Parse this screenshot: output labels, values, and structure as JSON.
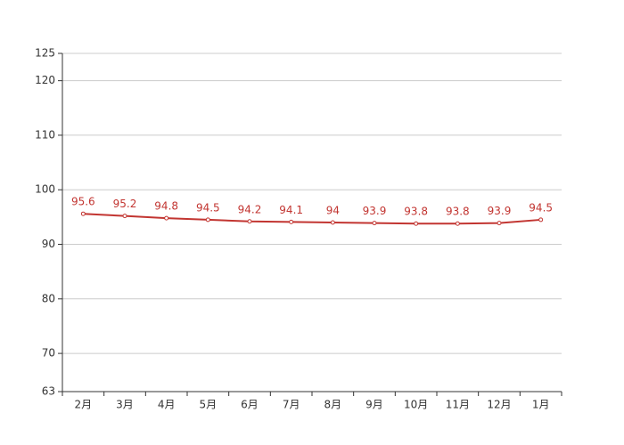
{
  "chart_data": {
    "type": "line",
    "categories": [
      "2月",
      "3月",
      "4月",
      "5月",
      "6月",
      "7月",
      "8月",
      "9月",
      "10月",
      "11月",
      "12月",
      "1月"
    ],
    "values": [
      95.6,
      95.2,
      94.8,
      94.5,
      94.2,
      94.1,
      94,
      93.9,
      93.8,
      93.8,
      93.9,
      94.5
    ],
    "color": "#c23531",
    "ylim": [
      63,
      125
    ],
    "yticks": [
      63,
      70,
      80,
      90,
      100,
      110,
      120,
      125
    ],
    "grid": true
  }
}
